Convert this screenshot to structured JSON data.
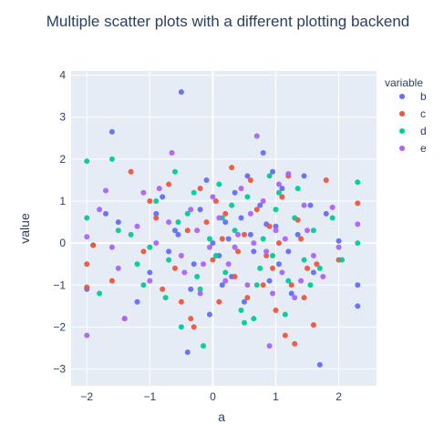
{
  "chart_data": {
    "type": "scatter",
    "title": "Multiple scatter plots with a different plotting backend",
    "xlabel": "a",
    "ylabel": "value",
    "xlim": [
      -2.25,
      2.6
    ],
    "ylim": [
      -3.4,
      4.1
    ],
    "xticks": [
      -2,
      -1,
      0,
      1,
      2
    ],
    "yticks": [
      -3,
      -2,
      -1,
      0,
      1,
      2,
      3,
      4
    ],
    "grid": true,
    "legend": {
      "title": "variable",
      "placement": "right"
    },
    "series": [
      {
        "name": "b",
        "color": "#636efa",
        "points": [
          [
            -0.5,
            3.6
          ],
          [
            -1.6,
            2.65
          ],
          [
            0.8,
            2.15
          ],
          [
            1.7,
            -2.9
          ],
          [
            -0.4,
            -2.6
          ],
          [
            -1.9,
            -0.05
          ],
          [
            -2.0,
            -1.1
          ],
          [
            -1.7,
            0.7
          ],
          [
            -1.2,
            -1.4
          ],
          [
            -1.0,
            -0.7
          ],
          [
            -0.8,
            1.1
          ],
          [
            -0.6,
            0.3
          ],
          [
            -0.3,
            -0.5
          ],
          [
            -0.1,
            1.5
          ],
          [
            0.0,
            0.0
          ],
          [
            0.1,
            -0.3
          ],
          [
            0.2,
            0.5
          ],
          [
            0.35,
            1.2
          ],
          [
            0.5,
            -1.4
          ],
          [
            0.6,
            0.2
          ],
          [
            0.75,
            0.9
          ],
          [
            0.9,
            -0.9
          ],
          [
            1.0,
            0.4
          ],
          [
            1.1,
            1.3
          ],
          [
            1.2,
            -0.2
          ],
          [
            1.35,
            0.2
          ],
          [
            1.45,
            1.6
          ],
          [
            1.6,
            -0.7
          ],
          [
            1.8,
            0.7
          ],
          [
            2.0,
            0.05
          ],
          [
            2.3,
            -1.0
          ],
          [
            2.3,
            -1.5
          ],
          [
            -0.7,
            -0.2
          ],
          [
            -0.2,
            0.8
          ],
          [
            0.3,
            -0.8
          ],
          [
            0.65,
            -0.2
          ],
          [
            0.95,
            1.7
          ],
          [
            1.25,
            -1.2
          ],
          [
            -0.05,
            -1.7
          ],
          [
            0.45,
            0.6
          ],
          [
            1.55,
            0.9
          ],
          [
            -1.5,
            0.5
          ],
          [
            -0.9,
            0.7
          ],
          [
            0.15,
            -1.0
          ],
          [
            0.85,
            0.45
          ],
          [
            -0.35,
            -1.1
          ],
          [
            1.05,
            -0.5
          ],
          [
            0.55,
            1.6
          ],
          [
            -0.55,
            0.2
          ],
          [
            0.25,
            0.1
          ]
        ]
      },
      {
        "name": "c",
        "color": "#ef553b",
        "points": [
          [
            -1.9,
            -0.05
          ],
          [
            -2.0,
            -0.5
          ],
          [
            -2.0,
            -1.05
          ],
          [
            -1.4,
            -1.8
          ],
          [
            -1.3,
            1.7
          ],
          [
            -1.1,
            -0.2
          ],
          [
            -0.9,
            0.6
          ],
          [
            -0.7,
            1.4
          ],
          [
            -0.5,
            -1.4
          ],
          [
            -0.3,
            -2.0
          ],
          [
            -0.35,
            -1.8
          ],
          [
            -0.1,
            0.5
          ],
          [
            0.05,
            1.0
          ],
          [
            0.1,
            -1.4
          ],
          [
            0.2,
            0.7
          ],
          [
            0.35,
            -0.8
          ],
          [
            0.5,
            0.2
          ],
          [
            0.6,
            1.5
          ],
          [
            0.8,
            -1.0
          ],
          [
            0.9,
            0.4
          ],
          [
            1.0,
            -1.6
          ],
          [
            1.1,
            1.1
          ],
          [
            1.15,
            -2.2
          ],
          [
            1.3,
            -2.4
          ],
          [
            1.4,
            0.1
          ],
          [
            1.5,
            -0.6
          ],
          [
            1.6,
            -1.95
          ],
          [
            1.65,
            -0.5
          ],
          [
            1.8,
            1.5
          ],
          [
            2.0,
            -0.4
          ],
          [
            2.3,
            0.95
          ],
          [
            -0.6,
            -0.6
          ],
          [
            -0.2,
            1.3
          ],
          [
            0.4,
            -0.2
          ],
          [
            0.7,
            0.8
          ],
          [
            1.05,
            0.0
          ],
          [
            1.25,
            -1.0
          ],
          [
            -1.6,
            -0.9
          ],
          [
            -0.8,
            -1.1
          ],
          [
            0.15,
            0.1
          ],
          [
            0.55,
            -1.3
          ],
          [
            0.95,
            -0.6
          ],
          [
            1.35,
            0.55
          ],
          [
            -0.4,
            0.3
          ],
          [
            0.3,
            1.8
          ],
          [
            1.2,
            1.6
          ],
          [
            -1.0,
            1.0
          ],
          [
            0.0,
            -0.4
          ],
          [
            0.85,
            -0.3
          ],
          [
            1.45,
            -1.3
          ]
        ]
      },
      {
        "name": "d",
        "color": "#00cc96",
        "points": [
          [
            -2.0,
            1.95
          ],
          [
            -2.0,
            0.6
          ],
          [
            -1.8,
            -1.2
          ],
          [
            -1.6,
            2.0
          ],
          [
            -1.5,
            0.3
          ],
          [
            -1.2,
            -0.5
          ],
          [
            -1.1,
            -1.0
          ],
          [
            -0.9,
            1.0
          ],
          [
            -0.75,
            -1.3
          ],
          [
            -0.55,
            0.5
          ],
          [
            -0.5,
            -2.0
          ],
          [
            -0.3,
            1.2
          ],
          [
            -0.15,
            -2.45
          ],
          [
            -0.05,
            0.1
          ],
          [
            0.1,
            1.4
          ],
          [
            0.2,
            -0.7
          ],
          [
            0.35,
            0.3
          ],
          [
            0.45,
            -1.6
          ],
          [
            0.55,
            1.1
          ],
          [
            0.65,
            -1.8
          ],
          [
            0.8,
            0.1
          ],
          [
            0.95,
            -0.3
          ],
          [
            1.05,
            1.2
          ],
          [
            1.15,
            -1.7
          ],
          [
            1.3,
            0.6
          ],
          [
            1.45,
            -0.4
          ],
          [
            1.6,
            0.3
          ],
          [
            1.7,
            -0.6
          ],
          [
            1.9,
            0.6
          ],
          [
            2.05,
            -0.4
          ],
          [
            2.3,
            1.45
          ],
          [
            2.3,
            0.0
          ],
          [
            -1.3,
            0.2
          ],
          [
            -0.7,
            -0.4
          ],
          [
            -0.2,
            -1.1
          ],
          [
            0.3,
            0.9
          ],
          [
            0.7,
            -1.0
          ],
          [
            1.0,
            0.8
          ],
          [
            1.2,
            -0.9
          ],
          [
            -1.0,
            -0.1
          ],
          [
            -0.4,
            0.7
          ],
          [
            0.05,
            -0.3
          ],
          [
            0.5,
            -1.9
          ],
          [
            0.9,
            1.6
          ],
          [
            1.35,
            1.3
          ],
          [
            -0.6,
            1.7
          ],
          [
            0.15,
            0.6
          ],
          [
            0.75,
            -0.6
          ],
          [
            1.55,
            -1.0
          ],
          [
            -0.25,
            -0.8
          ]
        ]
      },
      {
        "name": "e",
        "color": "#ab63fa",
        "points": [
          [
            -2.0,
            -2.2
          ],
          [
            -2.0,
            0.15
          ],
          [
            -1.8,
            0.8
          ],
          [
            -1.7,
            1.25
          ],
          [
            -1.6,
            -0.1
          ],
          [
            -1.4,
            -1.8
          ],
          [
            -1.2,
            0.4
          ],
          [
            -1.0,
            -0.9
          ],
          [
            -0.85,
            1.3
          ],
          [
            -0.65,
            2.15
          ],
          [
            -0.5,
            -0.3
          ],
          [
            -0.35,
            0.8
          ],
          [
            -0.2,
            -1.2
          ],
          [
            -0.05,
            -0.1
          ],
          [
            0.1,
            0.6
          ],
          [
            0.25,
            -0.5
          ],
          [
            0.4,
            0.2
          ],
          [
            0.55,
            -1.0
          ],
          [
            0.7,
            2.55
          ],
          [
            0.8,
            1.0
          ],
          [
            0.9,
            -2.45
          ],
          [
            1.0,
            0.3
          ],
          [
            1.1,
            -0.7
          ],
          [
            1.2,
            1.65
          ],
          [
            1.3,
            -1.3
          ],
          [
            1.45,
            0.9
          ],
          [
            1.6,
            -0.3
          ],
          [
            1.75,
            -0.8
          ],
          [
            1.9,
            0.85
          ],
          [
            2.0,
            -0.1
          ],
          [
            2.3,
            0.45
          ],
          [
            -1.5,
            -0.6
          ],
          [
            -0.9,
            0.0
          ],
          [
            -0.45,
            -0.7
          ],
          [
            0.0,
            1.1
          ],
          [
            0.35,
            -0.1
          ],
          [
            0.6,
            0.7
          ],
          [
            0.85,
            -0.2
          ],
          [
            1.15,
            0.1
          ],
          [
            1.4,
            -0.9
          ],
          [
            -0.7,
            0.5
          ],
          [
            -0.25,
            0.3
          ],
          [
            0.2,
            -0.9
          ],
          [
            0.65,
            0.0
          ],
          [
            1.05,
            1.4
          ],
          [
            -1.1,
            1.2
          ],
          [
            0.45,
            1.3
          ],
          [
            0.95,
            -1.2
          ],
          [
            1.5,
            0.3
          ],
          [
            -0.15,
            -0.5
          ]
        ]
      }
    ]
  }
}
